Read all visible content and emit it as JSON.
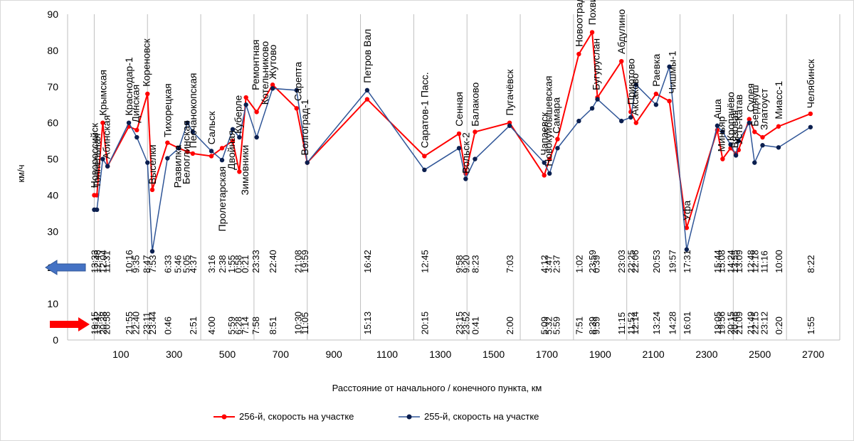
{
  "chart_data": {
    "type": "line",
    "title": "",
    "xlabel": "Расстояние от начального / конечного пункта, км",
    "ylabel": "км/ч",
    "xlim": [
      -100,
      2800
    ],
    "ylim": [
      0,
      90
    ],
    "x_ticks": [
      100,
      300,
      500,
      700,
      900,
      1100,
      1300,
      1500,
      1700,
      1900,
      2100,
      2300,
      2500,
      2700
    ],
    "y_ticks": [
      0,
      10,
      20,
      30,
      40,
      50,
      60,
      70,
      80,
      90
    ],
    "grid": "vertical",
    "colors": {
      "red": "#FF0000",
      "blue": "#2F5597",
      "navy": "#0B1F4F",
      "grid": "#BFBFBF"
    },
    "series": [
      {
        "name": "256-й, скорость на участке",
        "color": "#FF0000",
        "points": [
          [
            0,
            40
          ],
          [
            10,
            40
          ],
          [
            32,
            60
          ],
          [
            50,
            48
          ],
          [
            130,
            59
          ],
          [
            160,
            58
          ],
          [
            200,
            68
          ],
          [
            218,
            41.5
          ],
          [
            275,
            54.5
          ],
          [
            318,
            53
          ],
          [
            350,
            52
          ],
          [
            370,
            51.5
          ],
          [
            440,
            50.8
          ],
          [
            480,
            53
          ],
          [
            520,
            55
          ],
          [
            545,
            46.5
          ],
          [
            570,
            67
          ],
          [
            610,
            63
          ],
          [
            670,
            70.5
          ],
          [
            760,
            64
          ],
          [
            800,
            49
          ],
          [
            1025,
            66.5
          ],
          [
            1240,
            50.8
          ],
          [
            1370,
            57
          ],
          [
            1395,
            46
          ],
          [
            1430,
            57.5
          ],
          [
            1560,
            60
          ],
          [
            1690,
            45.5
          ],
          [
            1710,
            50
          ],
          [
            1740,
            55.5
          ],
          [
            1820,
            79
          ],
          [
            1870,
            85
          ],
          [
            1890,
            67
          ],
          [
            1980,
            77
          ],
          [
            2015,
            63
          ],
          [
            2035,
            60
          ],
          [
            2110,
            68
          ],
          [
            2160,
            66
          ],
          [
            2225,
            31
          ],
          [
            2340,
            58
          ],
          [
            2360,
            50
          ],
          [
            2390,
            53
          ],
          [
            2410,
            51.5
          ],
          [
            2420,
            52.5
          ],
          [
            2460,
            61
          ],
          [
            2480,
            57.5
          ],
          [
            2510,
            56
          ],
          [
            2570,
            59
          ],
          [
            2690,
            62.5
          ]
        ]
      },
      {
        "name": "255-й, скорость на участке",
        "color": "#2F5597",
        "points": [
          [
            0,
            36
          ],
          [
            10,
            36
          ],
          [
            32,
            50
          ],
          [
            50,
            48
          ],
          [
            130,
            60
          ],
          [
            160,
            56
          ],
          [
            200,
            49
          ],
          [
            218,
            24.5
          ],
          [
            275,
            50.2
          ],
          [
            318,
            53
          ],
          [
            350,
            60
          ],
          [
            370,
            57.5
          ],
          [
            440,
            52.2
          ],
          [
            480,
            49.7
          ],
          [
            520,
            58.2
          ],
          [
            545,
            56
          ],
          [
            570,
            65
          ],
          [
            610,
            56
          ],
          [
            670,
            69.5
          ],
          [
            760,
            69
          ],
          [
            800,
            49
          ],
          [
            1025,
            69
          ],
          [
            1240,
            47
          ],
          [
            1370,
            53
          ],
          [
            1395,
            44.5
          ],
          [
            1430,
            50
          ],
          [
            1560,
            59.2
          ],
          [
            1690,
            49
          ],
          [
            1710,
            46
          ],
          [
            1740,
            53
          ],
          [
            1820,
            60.5
          ],
          [
            1870,
            64
          ],
          [
            1890,
            66.5
          ],
          [
            1980,
            60.5
          ],
          [
            2015,
            61.5
          ],
          [
            2035,
            70.5
          ],
          [
            2110,
            65
          ],
          [
            2160,
            75.5
          ],
          [
            2225,
            25
          ],
          [
            2340,
            59.2
          ],
          [
            2360,
            57.5
          ],
          [
            2390,
            54
          ],
          [
            2410,
            51
          ],
          [
            2420,
            55
          ],
          [
            2460,
            60
          ],
          [
            2480,
            49
          ],
          [
            2510,
            53.8
          ],
          [
            2570,
            53.2
          ],
          [
            2690,
            58.8
          ]
        ]
      }
    ],
    "stations": [
      {
        "name": "Новороссийск",
        "x": 0,
        "lx": 0,
        "t_up": "13:33",
        "t_down": "19:15",
        "y_anchor": 42
      },
      {
        "name": "Тоннельная",
        "x": 10,
        "lx": 10,
        "t_up": "12:48",
        "t_down": "19:42",
        "y_anchor": 42
      },
      {
        "name": "Крымская",
        "x": 32,
        "lx": 32,
        "t_up": "12:04",
        "t_down": "20:38",
        "y_anchor": 62
      },
      {
        "name": "Абинская",
        "x": 50,
        "lx": 45,
        "t_up": "11:31",
        "t_down": "20:58",
        "y_anchor": 50
      },
      {
        "name": "Краснодар-1",
        "x": 130,
        "lx": 130,
        "t_up": "10:16",
        "t_down": "21:55",
        "y_anchor": 62
      },
      {
        "name": "Динская",
        "x": 160,
        "lx": 155,
        "t_up": "9:35",
        "t_down": "22:40",
        "y_anchor": 60
      },
      {
        "name": "Кореновск",
        "x": 200,
        "lx": 195,
        "t_up": "8:47",
        "t_down": "23:11",
        "y_anchor": 70
      },
      {
        "name": "Выселки",
        "x": 218,
        "lx": 218,
        "t_up": "7:53",
        "t_down": "23:44",
        "y_anchor": 43
      },
      {
        "name": "Тихорецкая",
        "x": 275,
        "lx": 275,
        "t_up": "6:33",
        "t_down": "0:46",
        "y_anchor": 56
      },
      {
        "name": "Развилка",
        "x": 318,
        "lx": 313,
        "t_up": "5:46",
        "t_down": "",
        "y_anchor": 42
      },
      {
        "name": "Белоглинская",
        "x": 350,
        "lx": 345,
        "t_up": "5:05",
        "t_down": "",
        "y_anchor": 43
      },
      {
        "name": "Песчанокопская",
        "x": 370,
        "lx": 370,
        "t_up": "4:37",
        "t_down": "2:51",
        "y_anchor": 53
      },
      {
        "name": "Сальск",
        "x": 440,
        "lx": 440,
        "t_up": "3:16",
        "t_down": "4:00",
        "y_anchor": 54
      },
      {
        "name": "Пролетарская",
        "x": 480,
        "lx": 480,
        "t_up": "2:38",
        "t_down": "",
        "y_anchor": 30
      },
      {
        "name": "Двойная",
        "x": 520,
        "lx": 515,
        "t_up": "1:55",
        "t_down": "5:59",
        "y_anchor": 47
      },
      {
        "name": "Куберле",
        "x": 545,
        "lx": 540,
        "t_up": "0:58",
        "t_down": "6:28",
        "y_anchor": 57
      },
      {
        "name": "Зимовники",
        "x": 570,
        "lx": 565,
        "t_up": "0:21",
        "t_down": "7:14",
        "y_anchor": 40
      },
      {
        "name": "Ремонтная",
        "x": 610,
        "lx": 605,
        "t_up": "23:33",
        "t_down": "7:58",
        "y_anchor": 69
      },
      {
        "name": "Котельниково",
        "x": 640,
        "lx": 640,
        "t_up": "",
        "t_down": "",
        "y_anchor": 65
      },
      {
        "name": "Жутово",
        "x": 670,
        "lx": 670,
        "t_up": "22:40",
        "t_down": "8:51",
        "y_anchor": 72
      },
      {
        "name": "Сарепта",
        "x": 760,
        "lx": 765,
        "t_up": "21:08",
        "t_down": "10:30",
        "y_anchor": 66
      },
      {
        "name": "Волгоград-1",
        "x": 800,
        "lx": 790,
        "t_up": "19:59",
        "t_down": "11:05",
        "y_anchor": 51
      },
      {
        "name": "Петров Вал",
        "x": 1025,
        "lx": 1025,
        "t_up": "16:42",
        "t_down": "15:13",
        "y_anchor": 71
      },
      {
        "name": "Саратов-1 Пасс.",
        "x": 1240,
        "lx": 1240,
        "t_up": "12:45",
        "t_down": "20:15",
        "y_anchor": 53
      },
      {
        "name": "Сенная",
        "x": 1370,
        "lx": 1370,
        "t_up": "9:58",
        "t_down": "23:15",
        "y_anchor": 59
      },
      {
        "name": "Вольск-2",
        "x": 1395,
        "lx": 1395,
        "t_up": "9:20",
        "t_down": "23:52",
        "y_anchor": 46
      },
      {
        "name": "Балаково",
        "x": 1430,
        "lx": 1430,
        "t_up": "8:23",
        "t_down": "0:41",
        "y_anchor": 59
      },
      {
        "name": "Пугачёвск",
        "x": 1560,
        "lx": 1560,
        "t_up": "7:03",
        "t_down": "2:00",
        "y_anchor": 62
      },
      {
        "name": "Чапаевск",
        "x": 1690,
        "lx": 1690,
        "t_up": "4:12",
        "t_down": "5:09",
        "y_anchor": 51
      },
      {
        "name": "Новокуйбышевская",
        "x": 1710,
        "lx": 1705,
        "t_up": "3:47",
        "t_down": "5:32",
        "y_anchor": 48
      },
      {
        "name": "Самара",
        "x": 1740,
        "lx": 1735,
        "t_up": "2:37",
        "t_down": "5:59",
        "y_anchor": 57
      },
      {
        "name": "Новоотрадная",
        "x": 1820,
        "lx": 1820,
        "t_up": "1:02",
        "t_down": "7:51",
        "y_anchor": 81
      },
      {
        "name": "Похвистнево",
        "x": 1870,
        "lx": 1870,
        "t_up": "23:59",
        "t_down": "8:39",
        "y_anchor": 87
      },
      {
        "name": "Бугуруслан",
        "x": 1890,
        "lx": 1885,
        "t_up": "0:39",
        "t_down": "9:59",
        "y_anchor": 69
      },
      {
        "name": "Абдулино",
        "x": 1980,
        "lx": 1980,
        "t_up": "23:03",
        "t_down": "11:15",
        "y_anchor": 79
      },
      {
        "name": "Приютово",
        "x": 2015,
        "lx": 2015,
        "t_up": "22:25",
        "t_down": "11:52",
        "y_anchor": 65
      },
      {
        "name": "Аксаково",
        "x": 2035,
        "lx": 2030,
        "t_up": "22:06",
        "t_down": "12:14",
        "y_anchor": 62
      },
      {
        "name": "Раевка",
        "x": 2110,
        "lx": 2110,
        "t_up": "20:53",
        "t_down": "13:24",
        "y_anchor": 70
      },
      {
        "name": "Чишмы-1",
        "x": 2160,
        "lx": 2170,
        "t_up": "19:57",
        "t_down": "14:28",
        "y_anchor": 68
      },
      {
        "name": "Уфа",
        "x": 2225,
        "lx": 2225,
        "t_up": "17:31",
        "t_down": "16:01",
        "y_anchor": 33
      },
      {
        "name": "Аша",
        "x": 2340,
        "lx": 2340,
        "t_up": "15:44",
        "t_down": "19:05",
        "y_anchor": 61
      },
      {
        "name": "Миньяр",
        "x": 2360,
        "lx": 2355,
        "t_up": "15:08",
        "t_down": "19:56",
        "y_anchor": 52
      },
      {
        "name": "Кропачёво",
        "x": 2390,
        "lx": 2390,
        "t_up": "14:24",
        "t_down": "20:15",
        "y_anchor": 55
      },
      {
        "name": "Вязовая",
        "x": 2410,
        "lx": 2405,
        "t_up": "13:55",
        "t_down": "20:46",
        "y_anchor": 53
      },
      {
        "name": "Усть-Катав",
        "x": 2420,
        "lx": 2420,
        "t_up": "13:09",
        "t_down": "21:09",
        "y_anchor": 54
      },
      {
        "name": "Сулея",
        "x": 2460,
        "lx": 2465,
        "t_up": "12:48",
        "t_down": "21:49",
        "y_anchor": 63
      },
      {
        "name": "Бердяуш",
        "x": 2480,
        "lx": 2480,
        "t_up": "12:18",
        "t_down": "22:15",
        "y_anchor": 59
      },
      {
        "name": "Златоуст",
        "x": 2510,
        "lx": 2515,
        "t_up": "11:16",
        "t_down": "23:12",
        "y_anchor": 58
      },
      {
        "name": "Миасс-1",
        "x": 2570,
        "lx": 2570,
        "t_up": "10:00",
        "t_down": "0:20",
        "y_anchor": 61
      },
      {
        "name": "Челябинск",
        "x": 2690,
        "lx": 2690,
        "t_up": "8:22",
        "t_down": "1:55",
        "y_anchor": 64
      }
    ]
  }
}
